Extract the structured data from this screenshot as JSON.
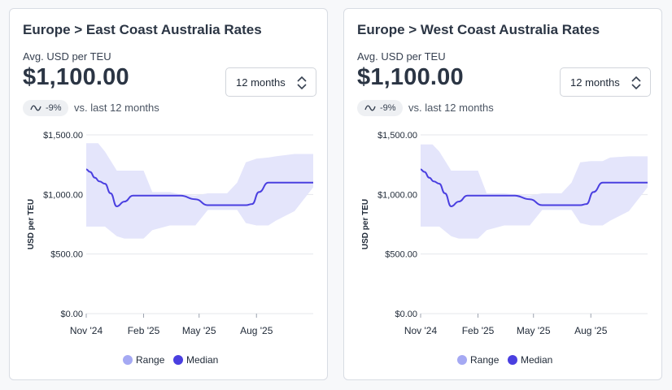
{
  "colors": {
    "range_fill": "#e4e5fb",
    "range_swatch": "#a5a9f3",
    "median_line": "#4a3fe0",
    "grid": "#e5e7eb"
  },
  "icons": {
    "select": "chevron-up-down-icon",
    "trend": "wave-trend-icon"
  },
  "cards": [
    {
      "title": "Europe > East Coast Australia Rates",
      "metric_label": "Avg. USD per TEU",
      "metric_value": "$1,100.00",
      "period": "12 months",
      "change": "-9%",
      "comparison": "vs. last 12 months",
      "legend": [
        "Range",
        "Median"
      ],
      "chart_data": {
        "type": "area",
        "ylabel": "USD per TEU",
        "ylim": [
          0,
          1500
        ],
        "y_ticks": [
          "$1,500.00",
          "$1,000.00",
          "$500.00",
          "$0.00"
        ],
        "x_tick_labels": [
          "Nov '24",
          "Feb '25",
          "May '25",
          "Aug '25"
        ],
        "series": [
          {
            "name": "Median",
            "x": [
              "2024-11-01",
              "2024-11-07",
              "2024-11-15",
              "2024-11-22",
              "2024-12-01",
              "2024-12-10",
              "2024-12-20",
              "2025-01-01",
              "2025-01-15",
              "2025-02-01",
              "2025-03-01",
              "2025-04-01",
              "2025-04-25",
              "2025-05-15",
              "2025-06-15",
              "2025-07-15",
              "2025-07-25",
              "2025-08-05",
              "2025-08-20",
              "2025-09-15",
              "2025-10-15",
              "2025-10-31"
            ],
            "values": [
              1210,
              1190,
              1140,
              1110,
              1090,
              1010,
              900,
              940,
              990,
              990,
              990,
              990,
              960,
              910,
              910,
              910,
              920,
              1020,
              1100,
              1100,
              1100,
              1100
            ]
          },
          {
            "name": "Range",
            "x": [
              "2024-11-01",
              "2024-11-20",
              "2024-12-01",
              "2024-12-20",
              "2025-01-01",
              "2025-02-01",
              "2025-02-15",
              "2025-03-15",
              "2025-04-01",
              "2025-04-25",
              "2025-05-15",
              "2025-06-15",
              "2025-07-01",
              "2025-07-15",
              "2025-08-01",
              "2025-08-20",
              "2025-09-01",
              "2025-10-01",
              "2025-10-31"
            ],
            "upper": [
              1430,
              1430,
              1360,
              1200,
              1200,
              1200,
              1020,
              1020,
              1000,
              990,
              1010,
              1010,
              1100,
              1270,
              1300,
              1310,
              1320,
              1340,
              1340
            ],
            "lower": [
              730,
              730,
              730,
              650,
              630,
              630,
              700,
              740,
              740,
              740,
              870,
              870,
              870,
              760,
              740,
              740,
              780,
              860,
              1060
            ]
          }
        ]
      }
    },
    {
      "title": "Europe > West Coast Australia Rates",
      "metric_label": "Avg. USD per TEU",
      "metric_value": "$1,100.00",
      "period": "12 months",
      "change": "-9%",
      "comparison": "vs. last 12 months",
      "legend": [
        "Range",
        "Median"
      ],
      "chart_data": {
        "type": "area",
        "ylabel": "USD per TEU",
        "ylim": [
          0,
          1500
        ],
        "y_ticks": [
          "$1,500.00",
          "$1,000.00",
          "$500.00",
          "$0.00"
        ],
        "x_tick_labels": [
          "Nov '24",
          "Feb '25",
          "May '25",
          "Aug '25"
        ],
        "series": [
          {
            "name": "Median",
            "x": [
              "2024-11-01",
              "2024-11-07",
              "2024-11-15",
              "2024-11-22",
              "2024-12-01",
              "2024-12-10",
              "2024-12-20",
              "2025-01-01",
              "2025-01-15",
              "2025-02-01",
              "2025-03-01",
              "2025-04-01",
              "2025-04-25",
              "2025-05-15",
              "2025-06-15",
              "2025-07-15",
              "2025-07-25",
              "2025-08-05",
              "2025-08-20",
              "2025-09-15",
              "2025-10-15",
              "2025-10-31"
            ],
            "values": [
              1210,
              1190,
              1140,
              1110,
              1090,
              1010,
              900,
              940,
              990,
              990,
              990,
              990,
              960,
              910,
              910,
              910,
              920,
              1020,
              1100,
              1100,
              1100,
              1100
            ]
          },
          {
            "name": "Range",
            "x": [
              "2024-11-01",
              "2024-11-20",
              "2024-12-01",
              "2024-12-20",
              "2025-01-01",
              "2025-02-01",
              "2025-02-15",
              "2025-03-15",
              "2025-04-01",
              "2025-04-25",
              "2025-05-15",
              "2025-06-15",
              "2025-07-01",
              "2025-07-15",
              "2025-08-01",
              "2025-08-20",
              "2025-09-01",
              "2025-10-01",
              "2025-10-31"
            ],
            "upper": [
              1420,
              1420,
              1360,
              1200,
              1200,
              1200,
              1010,
              1010,
              1000,
              990,
              1010,
              1010,
              1100,
              1270,
              1280,
              1280,
              1310,
              1320,
              1320
            ],
            "lower": [
              730,
              730,
              730,
              650,
              630,
              630,
              700,
              740,
              740,
              740,
              870,
              870,
              870,
              760,
              740,
              740,
              780,
              860,
              1060
            ]
          }
        ]
      }
    }
  ]
}
